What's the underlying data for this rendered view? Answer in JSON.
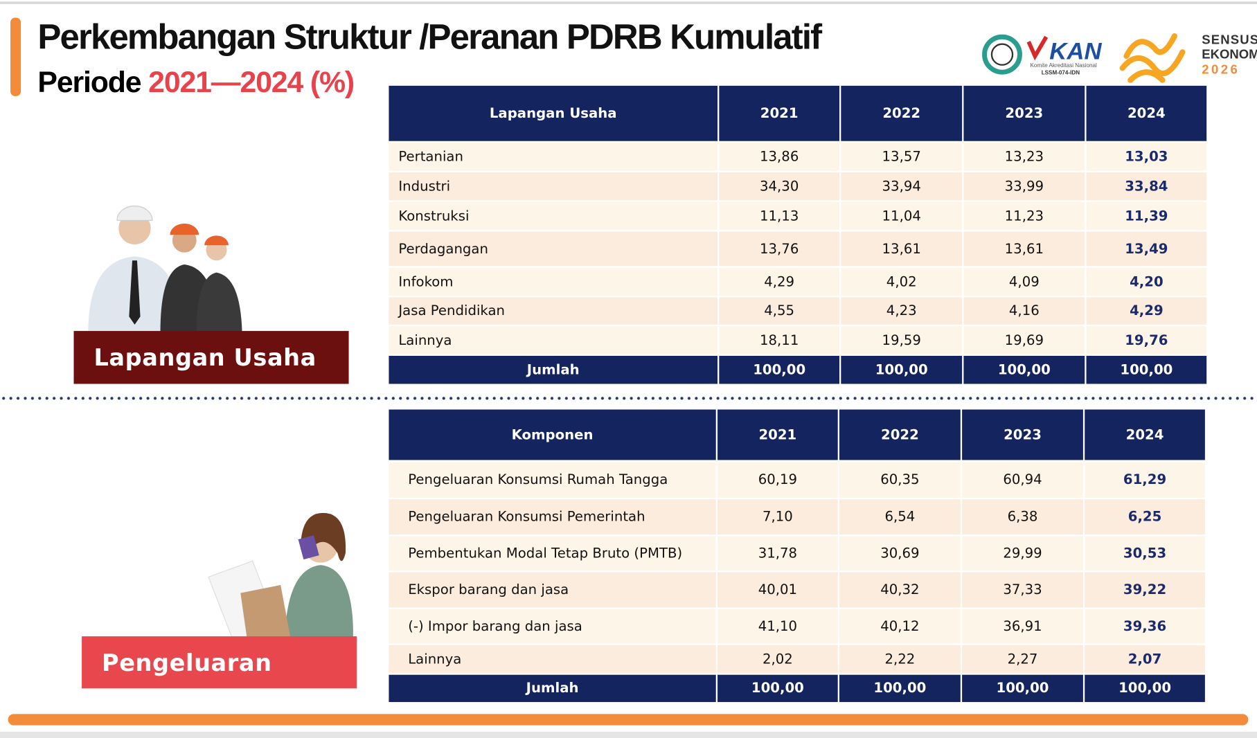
{
  "header": {
    "title": "Perkembangan Struktur /Peranan PDRB Kumulatif",
    "subtitle_prefix": "Periode",
    "subtitle_period": "2021—2024 (%)"
  },
  "logos": {
    "kan": "KAN",
    "kan_sub": "Komite Akreditasi Nasional",
    "kan_code": "LSSM-074-IDN",
    "sensus_line1": "SENSUS",
    "sensus_line2": "EKONOMI",
    "sensus_year": "2026"
  },
  "sections": [
    {
      "label": "Lapangan Usaha",
      "table": {
        "header": [
          "Lapangan Usaha",
          "2021",
          "2022",
          "2023",
          "2024"
        ],
        "rows": [
          [
            "Pertanian",
            "13,86",
            "13,57",
            "13,23",
            "13,03"
          ],
          [
            "Industri",
            "34,30",
            "33,94",
            "33,99",
            "33,84"
          ],
          [
            "Konstruksi",
            "11,13",
            "11,04",
            "11,23",
            "11,39"
          ],
          [
            "Perdagangan",
            "13,76",
            "13,61",
            "13,61",
            "13,49"
          ],
          [
            "Infokom",
            "4,29",
            "4,02",
            "4,09",
            "4,20"
          ],
          [
            "Jasa Pendidikan",
            "4,55",
            "4,23",
            "4,16",
            "4,29"
          ],
          [
            "Lainnya",
            "18,11",
            "19,59",
            "19,69",
            "19,76"
          ]
        ],
        "total": [
          "Jumlah",
          "100,00",
          "100,00",
          "100,00",
          "100,00"
        ]
      }
    },
    {
      "label": "Pengeluaran",
      "table": {
        "header": [
          "Komponen",
          "2021",
          "2022",
          "2023",
          "2024"
        ],
        "rows": [
          [
            "Pengeluaran Konsumsi Rumah Tangga",
            "60,19",
            "60,35",
            "60,94",
            "61,29"
          ],
          [
            "Pengeluaran Konsumsi Pemerintah",
            "7,10",
            "6,54",
            "6,38",
            "6,25"
          ],
          [
            "Pembentukan Modal Tetap Bruto (PMTB)",
            "31,78",
            "30,69",
            "29,99",
            "30,53"
          ],
          [
            "Ekspor barang dan jasa",
            "40,01",
            "40,32",
            "37,33",
            "39,22"
          ],
          [
            "(-) Impor barang dan jasa",
            "41,10",
            "40,12",
            "36,91",
            "39,36"
          ],
          [
            "Lainnya",
            "2,02",
            "2,22",
            "2,27",
            "2,07"
          ]
        ],
        "total": [
          "Jumlah",
          "100,00",
          "100,00",
          "100,00",
          "100,00"
        ]
      }
    }
  ]
}
